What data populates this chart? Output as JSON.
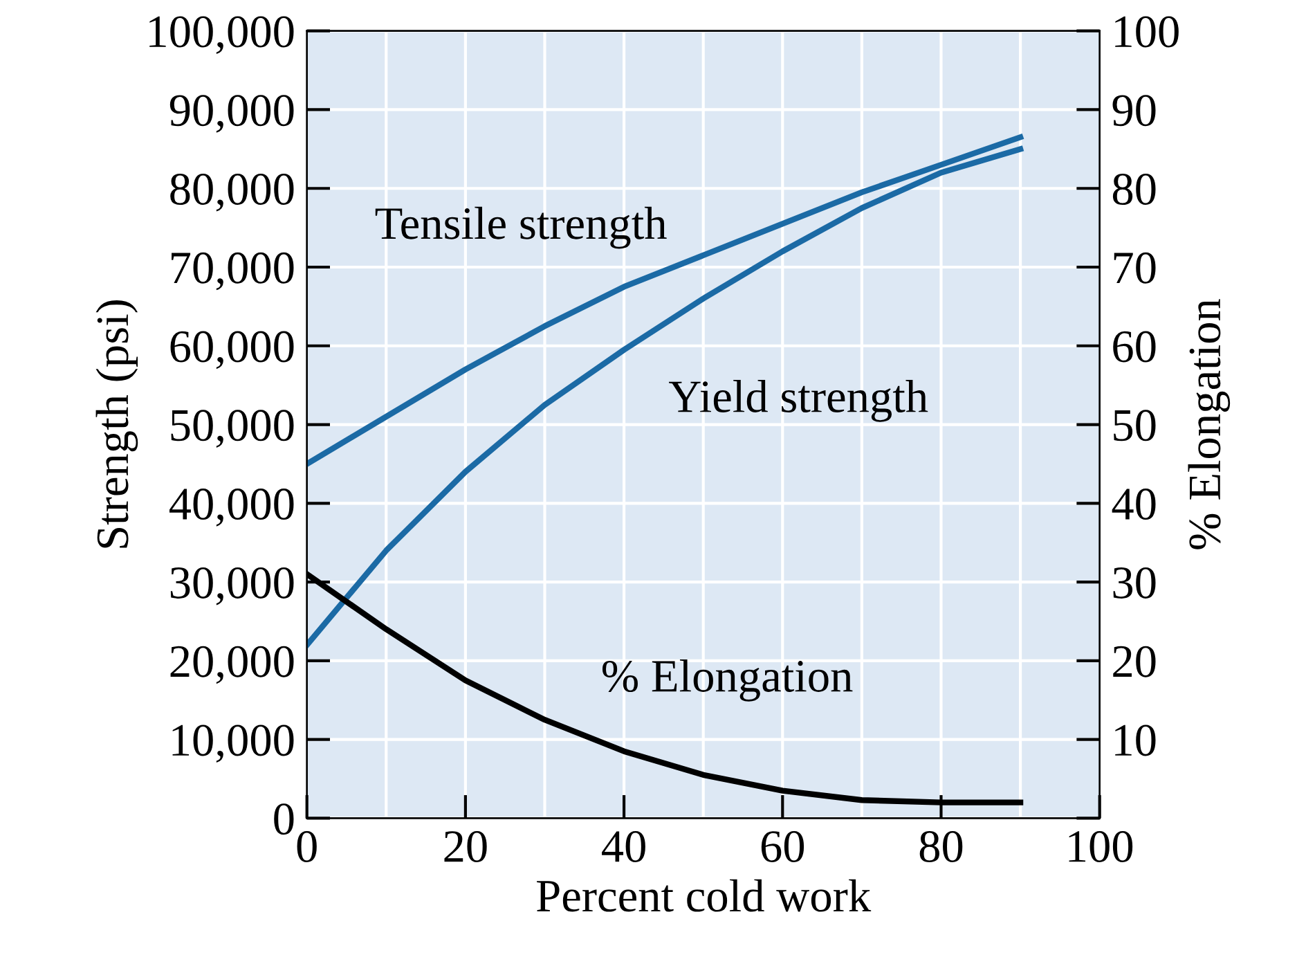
{
  "chart_data": {
    "type": "line",
    "xlabel": "Percent cold work",
    "ylabel": "Strength (psi)",
    "y2label": "% Elongation",
    "x": [
      0,
      10,
      20,
      30,
      40,
      50,
      60,
      70,
      80,
      90
    ],
    "series": [
      {
        "name": "Tensile strength",
        "color": "#1b6aa5",
        "values": [
          45000,
          51000,
          57000,
          62500,
          67500,
          71500,
          75500,
          79500,
          83000,
          86500
        ]
      },
      {
        "name": "Yield strength",
        "color": "#1b6aa5",
        "values": [
          22000,
          34000,
          44000,
          52500,
          59500,
          66000,
          72000,
          77500,
          82000,
          85000
        ]
      },
      {
        "name": "% Elongation",
        "color": "#000000",
        "axis": "y2",
        "values": [
          31,
          24,
          17.5,
          12.5,
          8.5,
          5.5,
          3.5,
          2.3,
          2,
          2
        ]
      }
    ],
    "xlim": [
      0,
      100
    ],
    "xticks": [
      0,
      20,
      40,
      60,
      80,
      100
    ],
    "ylim": [
      0,
      100000
    ],
    "yticks": [
      {
        "value": 0,
        "label": "0"
      },
      {
        "value": 10000,
        "label": "10,000"
      },
      {
        "value": 20000,
        "label": "20,000"
      },
      {
        "value": 30000,
        "label": "30,000"
      },
      {
        "value": 40000,
        "label": "40,000"
      },
      {
        "value": 50000,
        "label": "50,000"
      },
      {
        "value": 60000,
        "label": "60,000"
      },
      {
        "value": 70000,
        "label": "70,000"
      },
      {
        "value": 80000,
        "label": "80,000"
      },
      {
        "value": 90000,
        "label": "90,000"
      },
      {
        "value": 100000,
        "label": "100,000"
      }
    ],
    "y2lim": [
      0,
      100
    ],
    "y2ticks": [
      {
        "value": 0,
        "label": null
      },
      10,
      20,
      30,
      40,
      50,
      60,
      70,
      80,
      90,
      100
    ],
    "grid": true,
    "legend": false,
    "marker": "none",
    "line_style": "solid"
  }
}
